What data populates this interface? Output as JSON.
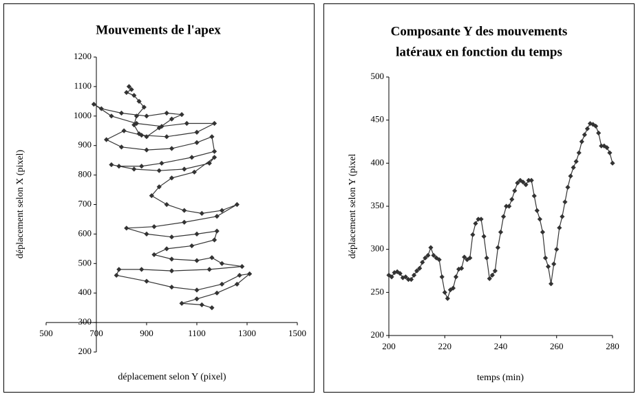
{
  "chart_data": [
    {
      "type": "line",
      "markers": "diamond",
      "title": [
        "Mouvements de l'apex"
      ],
      "x_label": "déplacement selon Y (pixel)",
      "y_label": "déplacement selon X (pixel)",
      "xlim": [
        500,
        1500
      ],
      "xticks": [
        500,
        700,
        900,
        1100,
        1300,
        1500
      ],
      "ylim": [
        200,
        1200
      ],
      "yticks": [
        200,
        300,
        400,
        500,
        600,
        700,
        800,
        900,
        1000,
        1100,
        1200
      ],
      "xaxis_at": 300,
      "yaxis_at": 700,
      "x": [
        830,
        840,
        820,
        850,
        870,
        890,
        860,
        850,
        870,
        900,
        950,
        1000,
        1040,
        980,
        900,
        800,
        720,
        690,
        760,
        860,
        960,
        1060,
        1170,
        1100,
        980,
        880,
        810,
        740,
        800,
        900,
        1000,
        1100,
        1160,
        1170,
        1080,
        960,
        880,
        790,
        760,
        850,
        950,
        1050,
        1150,
        1170,
        1090,
        1000,
        950,
        920,
        980,
        1050,
        1120,
        1200,
        1260,
        1180,
        1050,
        930,
        820,
        900,
        1000,
        1100,
        1180,
        1170,
        1080,
        980,
        930,
        1000,
        1100,
        1160,
        1200,
        1280,
        1150,
        1000,
        880,
        790,
        780,
        900,
        1000,
        1100,
        1200,
        1270,
        1310,
        1260,
        1180,
        1100,
        1040,
        1120,
        1160
      ],
      "series": [
        {
          "color": "#333333",
          "values": [
            1100,
            1090,
            1080,
            1070,
            1050,
            1030,
            1000,
            970,
            940,
            930,
            960,
            990,
            1005,
            1010,
            1000,
            1010,
            1025,
            1040,
            1000,
            975,
            965,
            975,
            975,
            945,
            930,
            935,
            950,
            920,
            895,
            885,
            890,
            910,
            930,
            880,
            860,
            840,
            830,
            830,
            835,
            820,
            815,
            820,
            840,
            860,
            810,
            790,
            760,
            730,
            700,
            680,
            670,
            680,
            700,
            660,
            640,
            625,
            620,
            600,
            590,
            600,
            610,
            580,
            560,
            550,
            530,
            515,
            510,
            520,
            500,
            490,
            480,
            475,
            480,
            480,
            460,
            440,
            420,
            410,
            430,
            460,
            465,
            430,
            400,
            380,
            365,
            360,
            350
          ]
        }
      ]
    },
    {
      "type": "line",
      "markers": "diamond",
      "title": [
        "Composante Y des mouvements",
        "latéraux en fonction du temps"
      ],
      "x_label": "temps (min)",
      "y_label": "déplacement selon Y (pixel",
      "xlim": [
        200,
        280
      ],
      "xticks": [
        200,
        220,
        240,
        260,
        280
      ],
      "ylim": [
        200,
        500
      ],
      "yticks": [
        200,
        250,
        300,
        350,
        400,
        450,
        500
      ],
      "x": [
        200,
        201,
        202,
        203,
        204,
        205,
        206,
        207,
        208,
        209,
        210,
        211,
        212,
        213,
        214,
        215,
        216,
        217,
        218,
        219,
        220,
        221,
        222,
        223,
        224,
        225,
        226,
        227,
        228,
        229,
        230,
        231,
        232,
        233,
        234,
        235,
        236,
        237,
        238,
        239,
        240,
        241,
        242,
        243,
        244,
        245,
        246,
        247,
        248,
        249,
        250,
        251,
        252,
        253,
        254,
        255,
        256,
        257,
        258,
        259,
        260,
        261,
        262,
        263,
        264,
        265,
        266,
        267,
        268,
        269,
        270,
        271,
        272,
        273,
        274,
        275,
        276,
        277,
        278,
        279,
        280
      ],
      "series": [
        {
          "color": "#333333",
          "values": [
            270,
            268,
            273,
            274,
            272,
            267,
            268,
            265,
            265,
            270,
            275,
            278,
            285,
            290,
            293,
            302,
            293,
            290,
            288,
            268,
            250,
            243,
            253,
            255,
            268,
            277,
            278,
            291,
            288,
            290,
            317,
            330,
            335,
            335,
            315,
            290,
            266,
            270,
            275,
            302,
            320,
            338,
            350,
            350,
            358,
            368,
            377,
            380,
            378,
            375,
            380,
            380,
            362,
            345,
            335,
            320,
            290,
            280,
            260,
            283,
            300,
            325,
            338,
            355,
            372,
            385,
            395,
            402,
            412,
            425,
            433,
            440,
            446,
            445,
            443,
            435,
            420,
            420,
            418,
            412,
            400
          ]
        }
      ]
    }
  ]
}
